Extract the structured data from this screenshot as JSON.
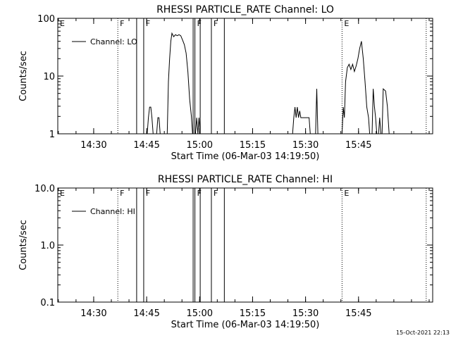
{
  "chart_data": [
    {
      "type": "line",
      "title": "RHESSI PARTICLE_RATE Channel: LO",
      "xlabel": "Start Time (06-Mar-03 14:19:50)",
      "ylabel": "Counts/sec",
      "yscale": "log",
      "ylim": [
        1,
        100
      ],
      "xlim": [
        "14:19:50",
        "16:06:00"
      ],
      "x_ticks": [
        "14:30",
        "14:45",
        "15:00",
        "15:15",
        "15:30",
        "15:45"
      ],
      "y_ticks": [
        "1",
        "10",
        "100"
      ],
      "legend": "Channel: LO",
      "legend_position": "top-left",
      "grid": false,
      "markers": [
        {
          "label": "E",
          "time": "14:19:50",
          "style": "dotted"
        },
        {
          "label": "F",
          "time": "14:36:50",
          "style": "dotted"
        },
        {
          "label": "",
          "time": "14:42:10",
          "style": "solid"
        },
        {
          "label": "F",
          "time": "14:44:10",
          "style": "solid"
        },
        {
          "label": "",
          "time": "14:58:10",
          "style": "solid"
        },
        {
          "label": "F",
          "time": "14:58:40",
          "style": "solid"
        },
        {
          "label": "",
          "time": "15:00:10",
          "style": "solid"
        },
        {
          "label": "F",
          "time": "15:03:20",
          "style": "solid"
        },
        {
          "label": "",
          "time": "15:07:00",
          "style": "solid"
        },
        {
          "label": "E",
          "time": "15:40:20",
          "style": "dotted"
        },
        {
          "label": "",
          "time": "16:04:10",
          "style": "dotted"
        }
      ],
      "series": [
        {
          "segments": [
            [
              [
                "14:45:10",
                1.0
              ],
              [
                "14:45:30",
                1.9
              ],
              [
                "14:45:50",
                2.9
              ],
              [
                "14:46:10",
                2.9
              ],
              [
                "14:46:30",
                1.9
              ],
              [
                "14:46:50",
                1.0
              ]
            ],
            [
              [
                "14:47:50",
                1.0
              ],
              [
                "14:48:10",
                1.9
              ],
              [
                "14:48:30",
                1.9
              ],
              [
                "14:48:50",
                1.0
              ]
            ],
            [
              [
                "14:50:50",
                1.0
              ],
              [
                "14:51:10",
                8
              ],
              [
                "14:51:30",
                20
              ],
              [
                "14:51:50",
                40
              ],
              [
                "14:52:10",
                55
              ],
              [
                "14:52:40",
                48
              ],
              [
                "14:53:10",
                52
              ],
              [
                "14:53:40",
                50
              ],
              [
                "14:54:10",
                52
              ],
              [
                "14:54:40",
                50
              ],
              [
                "14:55:10",
                42
              ],
              [
                "14:55:40",
                35
              ],
              [
                "14:56:10",
                25
              ],
              [
                "14:56:40",
                12
              ],
              [
                "14:57:10",
                4
              ],
              [
                "14:57:40",
                2
              ],
              [
                "14:58:00",
                1.0
              ]
            ],
            [
              [
                "14:58:50",
                1.0
              ],
              [
                "14:59:10",
                1.9
              ],
              [
                "14:59:30",
                1.0
              ],
              [
                "14:59:50",
                1.9
              ],
              [
                "15:00:10",
                1.0
              ]
            ],
            [
              [
                "15:26:20",
                1.0
              ],
              [
                "15:26:40",
                1.9
              ],
              [
                "15:27:00",
                2.9
              ],
              [
                "15:27:20",
                1.9
              ],
              [
                "15:27:40",
                2.9
              ],
              [
                "15:28:00",
                1.9
              ],
              [
                "15:28:20",
                2.5
              ],
              [
                "15:28:40",
                1.9
              ],
              [
                "15:29:20",
                1.9
              ],
              [
                "15:30:20",
                1.9
              ],
              [
                "15:31:00",
                1.9
              ],
              [
                "15:31:20",
                1.0
              ]
            ],
            [
              [
                "15:32:50",
                1.0
              ],
              [
                "15:33:10",
                6
              ],
              [
                "15:33:30",
                1.0
              ]
            ],
            [
              [
                "15:40:20",
                1.0
              ],
              [
                "15:40:40",
                2.9
              ],
              [
                "15:41:00",
                1.9
              ],
              [
                "15:41:20",
                8
              ],
              [
                "15:41:50",
                14
              ],
              [
                "15:42:20",
                16
              ],
              [
                "15:42:50",
                13
              ],
              [
                "15:43:20",
                16
              ],
              [
                "15:43:50",
                12
              ],
              [
                "15:44:20",
                15
              ],
              [
                "15:44:50",
                20
              ],
              [
                "15:45:20",
                30
              ],
              [
                "15:45:50",
                40
              ],
              [
                "15:46:20",
                20
              ],
              [
                "15:46:50",
                8
              ],
              [
                "15:47:20",
                2.9
              ],
              [
                "15:47:50",
                1.9
              ],
              [
                "15:48:10",
                1.0
              ]
            ],
            [
              [
                "15:48:50",
                1.0
              ],
              [
                "15:49:10",
                6
              ],
              [
                "15:49:30",
                3
              ],
              [
                "15:49:50",
                1.9
              ],
              [
                "15:50:10",
                1.0
              ]
            ],
            [
              [
                "15:50:40",
                1.0
              ],
              [
                "15:51:00",
                1.9
              ],
              [
                "15:51:20",
                1.0
              ]
            ],
            [
              [
                "15:51:40",
                1.0
              ],
              [
                "15:52:00",
                6
              ],
              [
                "15:52:40",
                5.5
              ],
              [
                "15:53:10",
                3
              ],
              [
                "15:53:40",
                1.0
              ]
            ]
          ]
        }
      ]
    },
    {
      "type": "line",
      "title": "RHESSI PARTICLE_RATE Channel: HI",
      "xlabel": "Start Time (06-Mar-03 14:19:50)",
      "ylabel": "Counts/sec",
      "yscale": "log",
      "ylim": [
        0.1,
        10
      ],
      "xlim": [
        "14:19:50",
        "16:06:00"
      ],
      "x_ticks": [
        "14:30",
        "14:45",
        "15:00",
        "15:15",
        "15:30",
        "15:45"
      ],
      "y_ticks": [
        "0.1",
        "1.0",
        "10.0"
      ],
      "legend": "Channel: HI",
      "legend_position": "top-left",
      "grid": false,
      "markers": [
        {
          "label": "E",
          "time": "14:19:50",
          "style": "dotted"
        },
        {
          "label": "F",
          "time": "14:36:50",
          "style": "dotted"
        },
        {
          "label": "",
          "time": "14:42:10",
          "style": "solid"
        },
        {
          "label": "F",
          "time": "14:44:10",
          "style": "solid"
        },
        {
          "label": "",
          "time": "14:58:10",
          "style": "solid"
        },
        {
          "label": "F",
          "time": "14:58:40",
          "style": "solid"
        },
        {
          "label": "",
          "time": "15:00:10",
          "style": "solid"
        },
        {
          "label": "F",
          "time": "15:03:20",
          "style": "solid"
        },
        {
          "label": "",
          "time": "15:07:00",
          "style": "solid"
        },
        {
          "label": "E",
          "time": "15:40:20",
          "style": "dotted"
        },
        {
          "label": "",
          "time": "16:04:10",
          "style": "dotted"
        }
      ],
      "series": [
        {
          "segments": []
        }
      ]
    }
  ],
  "footer": {
    "timestamp": "15-Oct-2021 22:13"
  }
}
